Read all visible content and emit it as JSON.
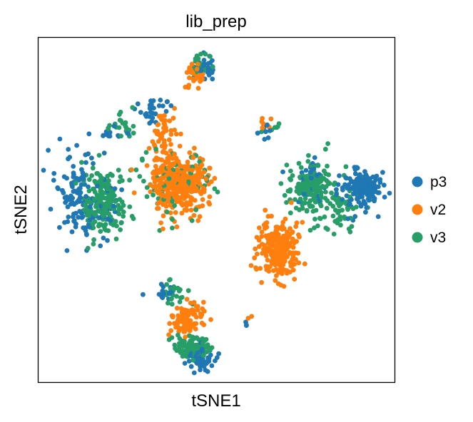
{
  "chart_data": {
    "type": "scatter",
    "title": "lib_prep",
    "xlabel": "tSNE1",
    "ylabel": "tSNE2",
    "xticks": [],
    "yticks": [],
    "grid": false,
    "legend_placement": "right-outside",
    "xlim": [
      0,
      100
    ],
    "ylim": [
      0,
      100
    ],
    "series": [
      {
        "name": "p3",
        "color": "#1f77b4",
        "clusters": [
          {
            "cx": 47,
            "cy": 91.5,
            "sx": 1.6,
            "sy": 2.0,
            "n": 30
          },
          {
            "cx": 32,
            "cy": 79,
            "sx": 2.8,
            "sy": 1.6,
            "n": 28
          },
          {
            "cx": 20,
            "cy": 72,
            "sx": 2.0,
            "sy": 1.2,
            "n": 12
          },
          {
            "cx": 11,
            "cy": 54,
            "sx": 3.2,
            "sy": 6.5,
            "n": 110
          },
          {
            "cx": 19,
            "cy": 52,
            "sx": 2.5,
            "sy": 4.5,
            "n": 35
          },
          {
            "cx": 90,
            "cy": 56,
            "sx": 3.0,
            "sy": 3.0,
            "n": 150
          },
          {
            "cx": 76,
            "cy": 58,
            "sx": 2.6,
            "sy": 3.0,
            "n": 30
          },
          {
            "cx": 64,
            "cy": 73,
            "sx": 1.2,
            "sy": 1.2,
            "n": 10
          },
          {
            "cx": 35,
            "cy": 27,
            "sx": 1.4,
            "sy": 1.8,
            "n": 15
          },
          {
            "cx": 45,
            "cy": 6.5,
            "sx": 2.2,
            "sy": 1.6,
            "n": 60
          },
          {
            "cx": 58.5,
            "cy": 17.5,
            "sx": 0.5,
            "sy": 0.5,
            "n": 3
          }
        ]
      },
      {
        "name": "v2",
        "color": "#ff7f0e",
        "clusters": [
          {
            "cx": 44,
            "cy": 88,
            "sx": 1.6,
            "sy": 2.5,
            "n": 30
          },
          {
            "cx": 35,
            "cy": 73,
            "sx": 1.8,
            "sy": 3.5,
            "n": 45
          },
          {
            "cx": 39.5,
            "cy": 58,
            "sx": 4.0,
            "sy": 4.0,
            "n": 420
          },
          {
            "cx": 67.5,
            "cy": 38.5,
            "sx": 2.6,
            "sy": 4.0,
            "n": 240
          },
          {
            "cx": 41.5,
            "cy": 18,
            "sx": 2.2,
            "sy": 3.0,
            "n": 95
          },
          {
            "cx": 64,
            "cy": 75,
            "sx": 0.8,
            "sy": 0.8,
            "n": 7
          },
          {
            "cx": 59.5,
            "cy": 19,
            "sx": 0.4,
            "sy": 0.4,
            "n": 2
          }
        ]
      },
      {
        "name": "v3",
        "color": "#279e68",
        "clusters": [
          {
            "cx": 46,
            "cy": 92,
            "sx": 1.5,
            "sy": 1.8,
            "n": 25
          },
          {
            "cx": 24,
            "cy": 74,
            "sx": 2.5,
            "sy": 2.0,
            "n": 22
          },
          {
            "cx": 18.5,
            "cy": 52,
            "sx": 3.0,
            "sy": 5.5,
            "n": 190
          },
          {
            "cx": 38,
            "cy": 58,
            "sx": 5.0,
            "sy": 5.0,
            "n": 70
          },
          {
            "cx": 77,
            "cy": 56,
            "sx": 3.5,
            "sy": 4.0,
            "n": 160
          },
          {
            "cx": 85,
            "cy": 50,
            "sx": 3.5,
            "sy": 3.5,
            "n": 50
          },
          {
            "cx": 66,
            "cy": 74,
            "sx": 1.0,
            "sy": 0.8,
            "n": 6
          },
          {
            "cx": 38.5,
            "cy": 26,
            "sx": 2.0,
            "sy": 1.6,
            "n": 25
          },
          {
            "cx": 43,
            "cy": 10,
            "sx": 2.8,
            "sy": 1.6,
            "n": 95
          }
        ]
      }
    ]
  },
  "legend": {
    "items": [
      {
        "label": "p3",
        "color": "#1f77b4"
      },
      {
        "label": "v2",
        "color": "#ff7f0e"
      },
      {
        "label": "v3",
        "color": "#279e68"
      }
    ]
  }
}
